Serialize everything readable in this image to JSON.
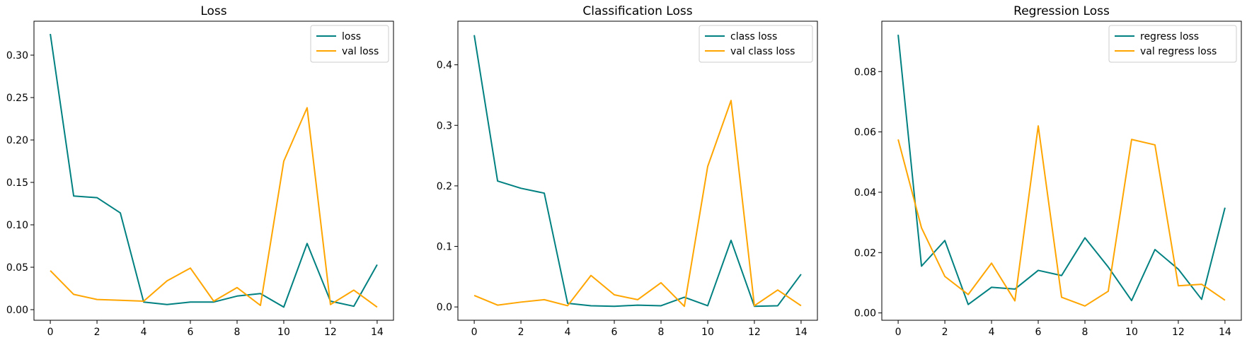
{
  "colors": {
    "train": "#008080",
    "val": "#FFA500"
  },
  "chart_data": [
    {
      "type": "line",
      "title": "Loss",
      "xlabel": "",
      "ylabel": "",
      "x": [
        0,
        1,
        2,
        3,
        4,
        5,
        6,
        7,
        8,
        9,
        10,
        11,
        12,
        13,
        14
      ],
      "xlim": [
        -0.7,
        14.7
      ],
      "ylim": [
        -0.0125,
        0.34
      ],
      "xticks": [
        0,
        2,
        4,
        6,
        8,
        10,
        12,
        14
      ],
      "xtick_labels": [
        "0",
        "2",
        "4",
        "6",
        "8",
        "10",
        "12",
        "14"
      ],
      "yticks": [
        0,
        0.05,
        0.1,
        0.15,
        0.2,
        0.25,
        0.3
      ],
      "ytick_labels": [
        "0.00",
        "0.05",
        "0.10",
        "0.15",
        "0.20",
        "0.25",
        "0.30"
      ],
      "legend_position": "top-right",
      "series": [
        {
          "name": "loss",
          "color": "#008080",
          "values": [
            0.325,
            0.134,
            0.132,
            0.114,
            0.009,
            0.006,
            0.009,
            0.009,
            0.016,
            0.019,
            0.003,
            0.078,
            0.01,
            0.004,
            0.053
          ]
        },
        {
          "name": "val loss",
          "color": "#FFA500",
          "values": [
            0.046,
            0.018,
            0.012,
            0.011,
            0.01,
            0.034,
            0.049,
            0.01,
            0.026,
            0.005,
            0.175,
            0.238,
            0.006,
            0.023,
            0.003
          ]
        }
      ]
    },
    {
      "type": "line",
      "title": "Classification Loss",
      "xlabel": "",
      "ylabel": "",
      "x": [
        0,
        1,
        2,
        3,
        4,
        5,
        6,
        7,
        8,
        9,
        10,
        11,
        12,
        13,
        14
      ],
      "xlim": [
        -0.7,
        14.7
      ],
      "ylim": [
        -0.022,
        0.472
      ],
      "xticks": [
        0,
        2,
        4,
        6,
        8,
        10,
        12,
        14
      ],
      "xtick_labels": [
        "0",
        "2",
        "4",
        "6",
        "8",
        "10",
        "12",
        "14"
      ],
      "yticks": [
        0,
        0.1,
        0.2,
        0.3,
        0.4
      ],
      "ytick_labels": [
        "0.0",
        "0.1",
        "0.2",
        "0.3",
        "0.4"
      ],
      "legend_position": "top-right",
      "series": [
        {
          "name": "class loss",
          "color": "#008080",
          "values": [
            0.449,
            0.208,
            0.196,
            0.188,
            0.006,
            0.002,
            0.001,
            0.003,
            0.002,
            0.016,
            0.002,
            0.11,
            0.001,
            0.002,
            0.054
          ]
        },
        {
          "name": "val class loss",
          "color": "#FFA500",
          "values": [
            0.019,
            0.003,
            0.008,
            0.012,
            0.002,
            0.052,
            0.02,
            0.012,
            0.04,
            0.001,
            0.232,
            0.341,
            0.002,
            0.028,
            0.002
          ]
        }
      ]
    },
    {
      "type": "line",
      "title": "Regression Loss",
      "xlabel": "",
      "ylabel": "",
      "x": [
        0,
        1,
        2,
        3,
        4,
        5,
        6,
        7,
        8,
        9,
        10,
        11,
        12,
        13,
        14
      ],
      "xlim": [
        -0.7,
        14.7
      ],
      "ylim": [
        -0.00243,
        0.0967
      ],
      "xticks": [
        0,
        2,
        4,
        6,
        8,
        10,
        12,
        14
      ],
      "xtick_labels": [
        "0",
        "2",
        "4",
        "6",
        "8",
        "10",
        "12",
        "14"
      ],
      "yticks": [
        0,
        0.02,
        0.04,
        0.06,
        0.08
      ],
      "ytick_labels": [
        "0.00",
        "0.02",
        "0.04",
        "0.06",
        "0.08"
      ],
      "legend_position": "top-right",
      "series": [
        {
          "name": "regress loss",
          "color": "#008080",
          "values": [
            0.0922,
            0.0155,
            0.024,
            0.0028,
            0.0085,
            0.0079,
            0.0141,
            0.0124,
            0.0249,
            0.0152,
            0.0041,
            0.021,
            0.0145,
            0.0045,
            0.0349
          ]
        },
        {
          "name": "val regress loss",
          "color": "#FFA500",
          "values": [
            0.0575,
            0.0282,
            0.0121,
            0.0061,
            0.0165,
            0.004,
            0.062,
            0.0052,
            0.0023,
            0.0072,
            0.0575,
            0.0557,
            0.009,
            0.0095,
            0.0042
          ]
        }
      ]
    }
  ]
}
